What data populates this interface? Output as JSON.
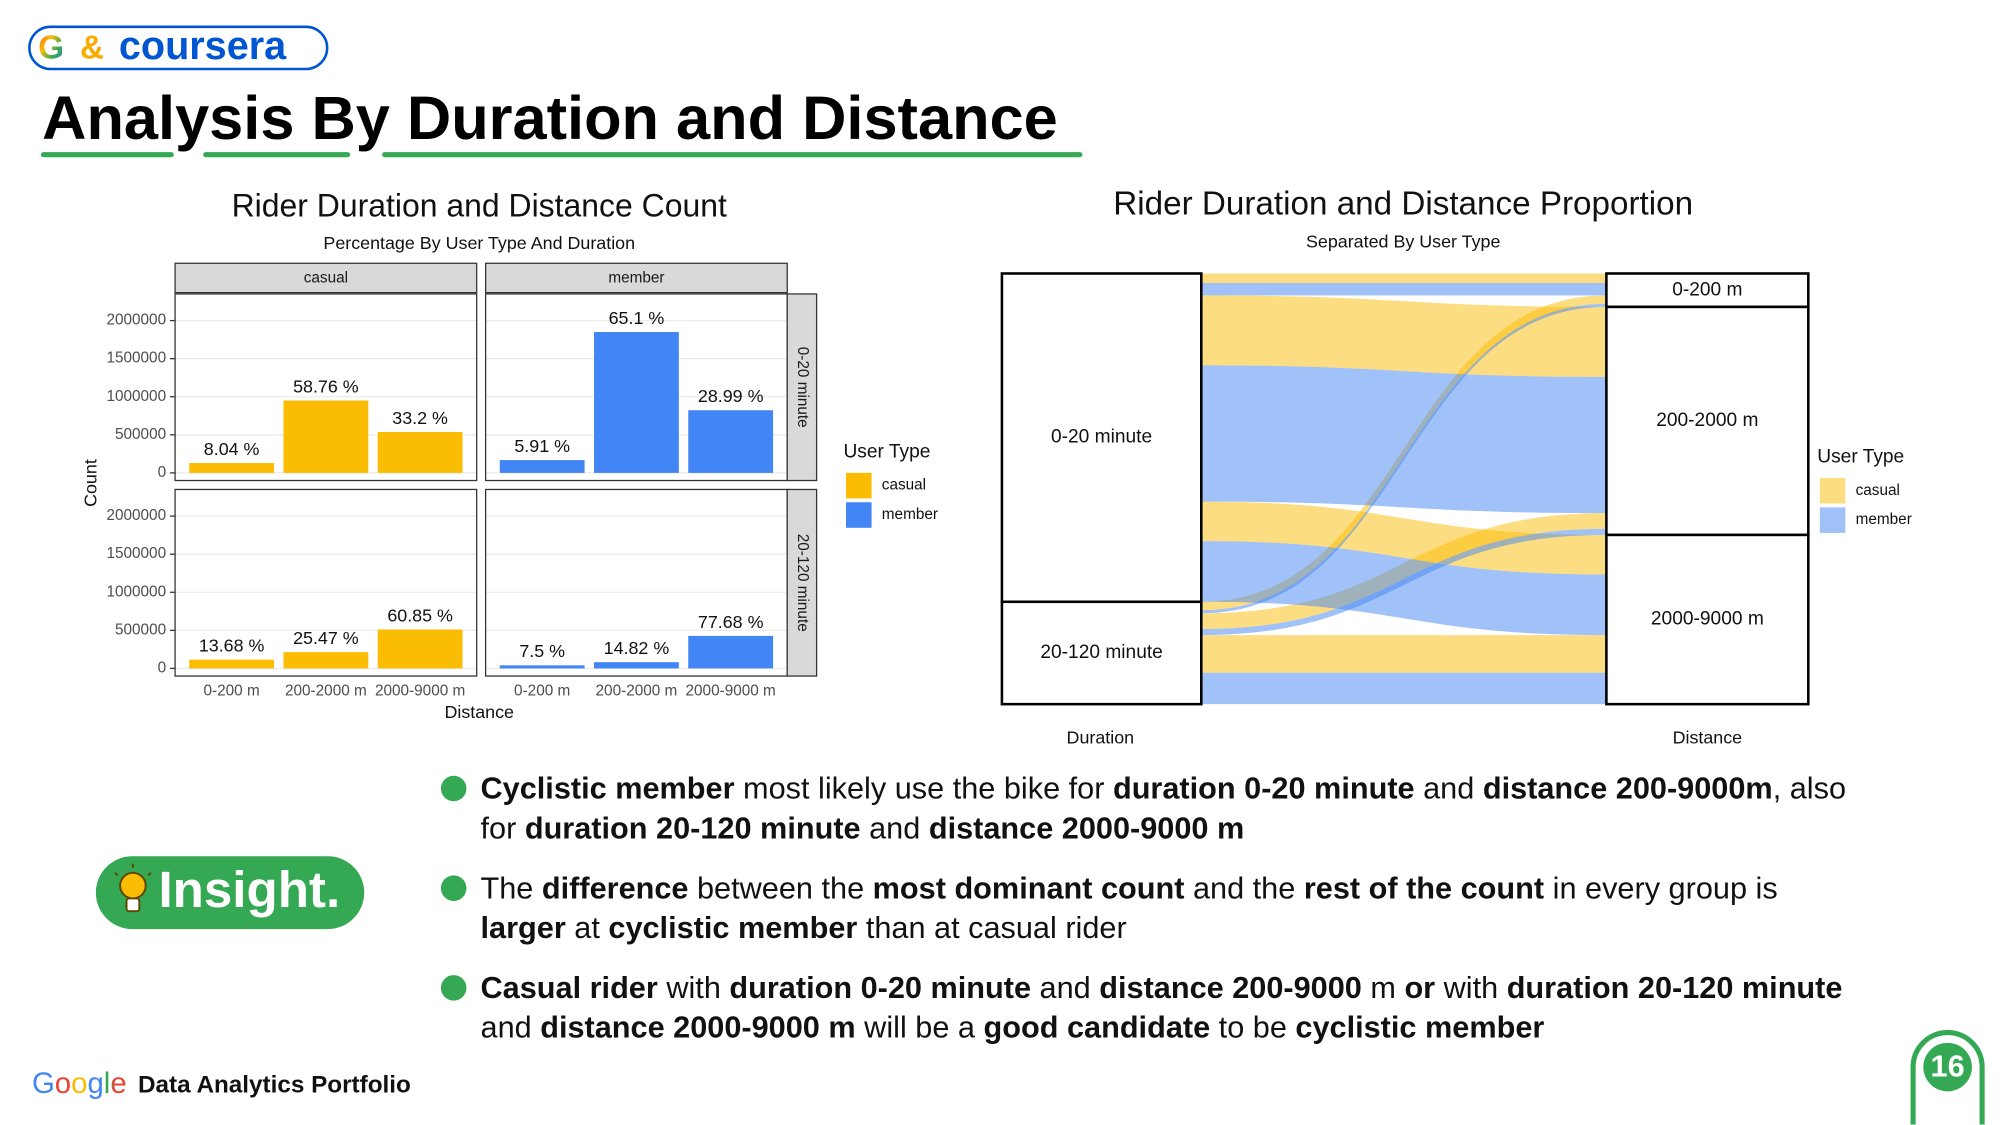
{
  "header": {
    "logo": {
      "mark": "G",
      "amp": "&",
      "name": "coursera"
    },
    "title": "Analysis By Duration and Distance"
  },
  "chart_data": [
    {
      "type": "bar",
      "facet": "grid",
      "title": "Rider Duration and Distance Count",
      "subtitle": "Percentage By User Type And Duration",
      "x_label": "Distance",
      "y_label": "Count",
      "rows": [
        "0-20 minute",
        "20-120 minute"
      ],
      "categories": [
        "0-200 m",
        "200-2000 m",
        "2000-9000 m"
      ],
      "ylim": [
        -100000,
        2350000
      ],
      "yticks": [
        0,
        500000,
        1000000,
        1500000,
        2000000
      ],
      "grid": true,
      "legend_title": "User Type",
      "legend": "right",
      "series": [
        {
          "name": "casual",
          "color": "#fbbc04",
          "values": [
            [
              130000,
              950000,
              537000
            ],
            [
              115000,
              214000,
              511000
            ]
          ],
          "percent_labels": [
            [
              "8.04 %",
              "58.76 %",
              "33.2 %"
            ],
            [
              "13.68 %",
              "25.47 %",
              "60.85 %"
            ]
          ]
        },
        {
          "name": "member",
          "color": "#4285f4",
          "values": [
            [
              168000,
              1850000,
              823000
            ],
            [
              41000,
              82000,
              427000
            ]
          ],
          "percent_labels": [
            [
              "5.91 %",
              "65.1 %",
              "28.99 %"
            ],
            [
              "7.5 %",
              "14.82 %",
              "77.68 %"
            ]
          ]
        }
      ]
    },
    {
      "type": "alluvial",
      "title": "Rider Duration and Distance Proportion",
      "subtitle": "Separated By User Type",
      "axes": [
        "Duration",
        "Distance"
      ],
      "legend_title": "User Type",
      "legend": "right",
      "opacity": 0.5
    }
  ],
  "insight_badge": "Insight.",
  "insights": [
    {
      "segments": [
        {
          "text": "Cyclistic member",
          "bold": true
        },
        {
          "text": " most likely use the bike for "
        },
        {
          "text": "duration 0-20 minute",
          "bold": true
        },
        {
          "text": " and "
        },
        {
          "text": "distance 200-9000m",
          "bold": true
        },
        {
          "text": ", also for "
        },
        {
          "text": "duration 20-120 minute",
          "bold": true
        },
        {
          "text": " and "
        },
        {
          "text": "distance 2000-9000 m",
          "bold": true
        }
      ]
    },
    {
      "segments": [
        {
          "text": "The "
        },
        {
          "text": "difference",
          "bold": true
        },
        {
          "text": " between the "
        },
        {
          "text": "most dominant count",
          "bold": true
        },
        {
          "text": " and the "
        },
        {
          "text": "rest of the count",
          "bold": true
        },
        {
          "text": " in every group is "
        },
        {
          "text": "larger",
          "bold": true
        },
        {
          "text": " at "
        },
        {
          "text": "cyclistic member",
          "bold": true
        },
        {
          "text": " than at casual rider"
        }
      ]
    },
    {
      "segments": [
        {
          "text": "Casual rider",
          "bold": true
        },
        {
          "text": " with "
        },
        {
          "text": "duration 0-20 minute",
          "bold": true
        },
        {
          "text": " and "
        },
        {
          "text": "distance 200-9000",
          "bold": true
        },
        {
          "text": " m "
        },
        {
          "text": "or",
          "bold": true
        },
        {
          "text": " with "
        },
        {
          "text": "duration 20-120 minute",
          "bold": true
        },
        {
          "text": " and "
        },
        {
          "text": "distance 2000-9000 m",
          "bold": true
        },
        {
          "text": " will be a "
        },
        {
          "text": "good candidate",
          "bold": true
        },
        {
          "text": " to be "
        },
        {
          "text": "cyclistic member",
          "bold": true
        }
      ]
    }
  ],
  "footer": {
    "brand": "Google",
    "text": "Data Analytics Portfolio"
  },
  "page_number": 16
}
